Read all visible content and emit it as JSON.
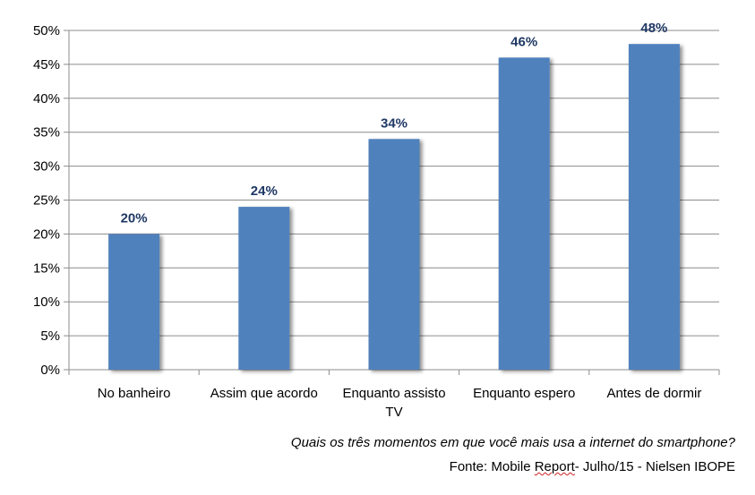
{
  "chart_data": {
    "type": "bar",
    "categories": [
      "No banheiro",
      "Assim que acordo",
      "Enquanto assisto TV",
      "Enquanto espero",
      "Antes de dormir"
    ],
    "category_label_lines": [
      [
        "No banheiro"
      ],
      [
        "Assim que acordo"
      ],
      [
        "Enquanto assisto",
        "TV"
      ],
      [
        "Enquanto espero"
      ],
      [
        "Antes de dormir"
      ]
    ],
    "values": [
      20,
      24,
      34,
      46,
      48
    ],
    "data_labels": [
      "20%",
      "24%",
      "34%",
      "46%",
      "48%"
    ],
    "ylim": [
      0,
      50
    ],
    "yticks": [
      0,
      5,
      10,
      15,
      20,
      25,
      30,
      35,
      40,
      45,
      50
    ],
    "ytick_labels": [
      "0%",
      "5%",
      "10%",
      "15%",
      "20%",
      "25%",
      "30%",
      "35%",
      "40%",
      "45%",
      "50%"
    ],
    "grid": true,
    "legend": "none",
    "bar_color": "#4f81bd",
    "label_color": "#1f3864"
  },
  "captions": {
    "question": "Quais os três momentos em que você mais usa a internet do smartphone?",
    "source_prefix": "Fonte: Mobile ",
    "source_marked": "Report",
    "source_suffix": "- Julho/15 - Nielsen IBOPE"
  }
}
